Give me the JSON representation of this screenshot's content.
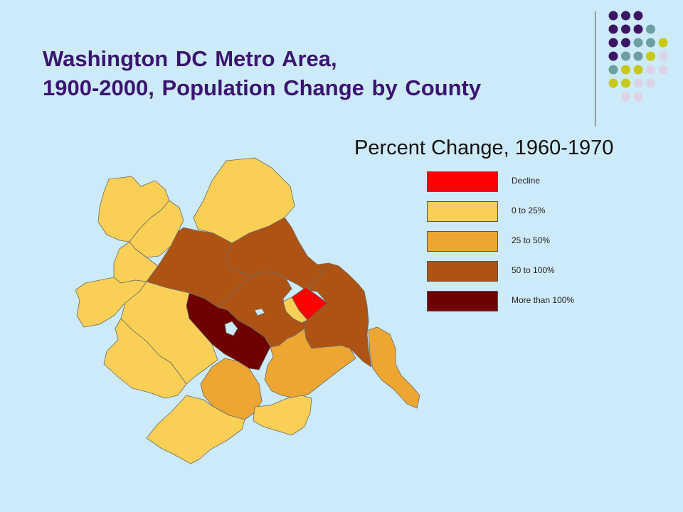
{
  "title": {
    "line1": "Washington DC Metro Area,",
    "line2": "1900-2000, Population Change by County"
  },
  "subtitle": "Percent Change, 1960-1970",
  "legend": [
    {
      "label": "Decline",
      "color": "#ff0000"
    },
    {
      "label": "0 to 25%",
      "color": "#f9cf55"
    },
    {
      "label": "25 to 50%",
      "color": "#eea632"
    },
    {
      "label": "50 to 100%",
      "color": "#ae5314"
    },
    {
      "label": "More than 100%",
      "color": "#6e0000"
    }
  ],
  "colors": {
    "background": "#cdeaf8",
    "title": "#3a1570",
    "water": "#cdeaf8"
  },
  "decoration_dot_colors": [
    "#3d1565",
    "#6c9ea3",
    "#c8c81a",
    "#ddd3e6"
  ]
}
